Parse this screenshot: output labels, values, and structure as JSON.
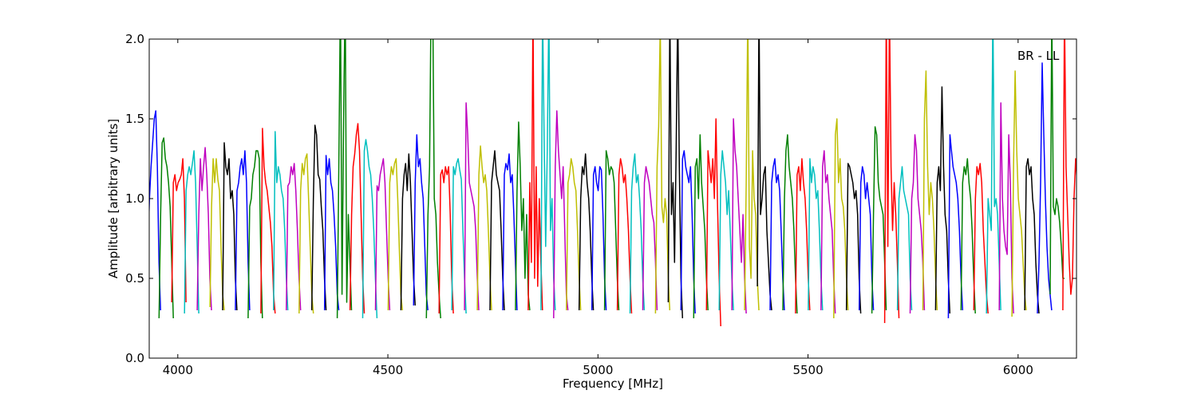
{
  "chart_data": {
    "type": "line",
    "title": "",
    "annotation": "BR - LL",
    "xlabel": "Frequency [MHz]",
    "ylabel": "Amplitude [arbitrary units]",
    "xlim": [
      3932,
      6139
    ],
    "ylim": [
      0,
      2
    ],
    "xticks": [
      4000,
      4500,
      5000,
      5500,
      6000
    ],
    "xtick_labels": [
      "4000",
      "4500",
      "5000",
      "5500",
      "6000"
    ],
    "yticks": [
      0,
      0.5,
      1,
      1.5,
      2
    ],
    "ytick_labels": [
      "0.0",
      "0.5",
      "1.0",
      "1.5",
      "2.0"
    ],
    "grid": false,
    "color_cycle": [
      "#0000ff",
      "#008000",
      "#ff0000",
      "#00bfbf",
      "#bf00bf",
      "#bfbf00",
      "#000000"
    ],
    "segment_start_mhz": 3925,
    "segment_step_mhz": 30.3,
    "segment_width_mhz": 34,
    "segments": [
      [
        0.3,
        0.7,
        1.0,
        1.2,
        1.35,
        1.5,
        1.55,
        1.2,
        0.6,
        0.3
      ],
      [
        0.25,
        0.9,
        1.35,
        1.38,
        1.25,
        1.2,
        1.1,
        0.95,
        0.6,
        0.25
      ],
      [
        0.35,
        1.1,
        1.15,
        1.05,
        1.1,
        1.12,
        1.15,
        1.25,
        1.0,
        0.35
      ],
      [
        0.28,
        1.05,
        1.15,
        1.2,
        1.15,
        1.22,
        1.3,
        1.1,
        0.7,
        0.28
      ],
      [
        0.3,
        0.9,
        1.25,
        1.05,
        1.2,
        1.32,
        1.15,
        0.9,
        0.5,
        0.3
      ],
      [
        0.32,
        0.95,
        1.25,
        1.1,
        1.25,
        1.12,
        1.05,
        0.7,
        0.4,
        0.3
      ],
      [
        0.3,
        1.35,
        1.2,
        1.15,
        1.25,
        1.0,
        1.05,
        0.9,
        0.5,
        0.3
      ],
      [
        0.3,
        1.05,
        1.1,
        1.2,
        1.25,
        1.15,
        1.3,
        1.1,
        0.6,
        0.3
      ],
      [
        0.25,
        0.95,
        1.0,
        1.15,
        1.2,
        1.3,
        1.3,
        1.25,
        0.6,
        0.25
      ],
      [
        0.28,
        1.44,
        1.2,
        1.1,
        1.05,
        0.95,
        0.85,
        0.7,
        0.4,
        0.28
      ],
      [
        0.3,
        1.42,
        1.1,
        1.2,
        1.15,
        1.05,
        1.0,
        0.8,
        0.5,
        0.3
      ],
      [
        0.3,
        1.08,
        1.1,
        1.2,
        1.15,
        1.22,
        1.05,
        0.8,
        0.5,
        0.3
      ],
      [
        0.28,
        1.05,
        1.22,
        1.15,
        1.25,
        1.28,
        1.0,
        0.7,
        0.4,
        0.28
      ],
      [
        0.3,
        1.0,
        1.46,
        1.4,
        1.15,
        1.12,
        0.95,
        0.8,
        0.5,
        0.3
      ],
      [
        0.3,
        1.27,
        1.15,
        1.25,
        1.1,
        1.05,
        0.9,
        0.7,
        0.4,
        0.3
      ],
      [
        0.25,
        1.2,
        2.3,
        0.4,
        1.5,
        2.3,
        0.35,
        0.9,
        0.6,
        0.3
      ],
      [
        0.3,
        0.9,
        1.2,
        1.28,
        1.4,
        1.47,
        1.3,
        0.9,
        0.5,
        0.28
      ],
      [
        0.25,
        1.3,
        1.37,
        1.3,
        1.2,
        1.15,
        1.0,
        0.8,
        0.5,
        0.25
      ],
      [
        0.3,
        1.08,
        1.05,
        1.15,
        1.2,
        1.25,
        1.1,
        0.8,
        0.5,
        0.3
      ],
      [
        0.3,
        1.1,
        1.2,
        1.15,
        1.22,
        1.25,
        1.0,
        0.7,
        0.4,
        0.3
      ],
      [
        0.3,
        1.0,
        1.15,
        1.22,
        1.05,
        1.28,
        1.1,
        0.8,
        0.5,
        0.33
      ],
      [
        0.33,
        1.1,
        1.4,
        1.2,
        1.25,
        1.1,
        1.0,
        0.7,
        0.4,
        0.3
      ],
      [
        0.25,
        0.9,
        1.2,
        2.3,
        2.3,
        1.0,
        0.9,
        0.6,
        0.4,
        0.25
      ],
      [
        0.28,
        1.15,
        1.18,
        1.1,
        1.2,
        1.15,
        1.2,
        0.9,
        0.5,
        0.28
      ],
      [
        0.3,
        1.2,
        1.15,
        1.22,
        1.25,
        1.18,
        1.12,
        0.8,
        0.5,
        0.28
      ],
      [
        0.3,
        1.6,
        1.4,
        1.1,
        1.05,
        1.0,
        0.95,
        0.8,
        0.5,
        0.3
      ],
      [
        0.3,
        1.15,
        1.33,
        1.2,
        1.1,
        1.15,
        1.05,
        0.8,
        0.5,
        0.3
      ],
      [
        0.3,
        1.1,
        1.2,
        1.3,
        1.15,
        1.1,
        1.05,
        0.8,
        0.5,
        0.3
      ],
      [
        0.3,
        1.15,
        1.22,
        1.18,
        1.28,
        1.1,
        1.15,
        0.9,
        0.6,
        0.3
      ],
      [
        0.3,
        1.05,
        1.48,
        1.2,
        0.8,
        1.0,
        0.5,
        0.9,
        0.4,
        0.3
      ],
      [
        0.3,
        1.1,
        0.6,
        2.2,
        0.5,
        1.2,
        0.45,
        1.0,
        0.6,
        0.3
      ],
      [
        0.3,
        2.2,
        1.4,
        0.7,
        1.3,
        2.2,
        0.8,
        1.0,
        0.5,
        0.3
      ],
      [
        0.25,
        1.2,
        1.55,
        1.3,
        1.15,
        1.0,
        1.2,
        0.8,
        0.4,
        0.3
      ],
      [
        0.3,
        1.1,
        1.15,
        1.25,
        1.2,
        1.1,
        1.05,
        0.8,
        0.5,
        0.3
      ],
      [
        0.3,
        1.0,
        1.2,
        1.15,
        1.28,
        1.1,
        1.0,
        0.8,
        0.5,
        0.3
      ],
      [
        0.3,
        1.15,
        1.2,
        1.1,
        1.05,
        1.2,
        1.18,
        0.9,
        0.5,
        0.3
      ],
      [
        0.3,
        1.3,
        1.25,
        1.15,
        1.2,
        1.18,
        1.1,
        0.8,
        0.5,
        0.3
      ],
      [
        0.3,
        1.15,
        1.25,
        1.2,
        1.1,
        1.15,
        1.0,
        0.8,
        0.5,
        0.28
      ],
      [
        0.28,
        1.05,
        1.2,
        1.28,
        1.1,
        1.15,
        1.0,
        0.8,
        0.5,
        0.3
      ],
      [
        0.3,
        1.1,
        1.2,
        1.15,
        1.1,
        1.0,
        0.9,
        0.85,
        0.6,
        0.3
      ],
      [
        0.28,
        1.2,
        1.45,
        2.1,
        0.95,
        0.85,
        1.0,
        0.9,
        0.5,
        0.3
      ],
      [
        0.35,
        2.2,
        0.9,
        1.1,
        0.6,
        1.3,
        2.2,
        1.2,
        0.5,
        0.25
      ],
      [
        0.3,
        1.25,
        1.3,
        1.2,
        1.15,
        1.1,
        1.2,
        0.9,
        0.5,
        0.28
      ],
      [
        0.25,
        1.2,
        1.25,
        1.0,
        1.4,
        1.1,
        0.95,
        0.8,
        0.5,
        0.3
      ],
      [
        0.3,
        1.3,
        1.2,
        1.1,
        1.25,
        1.0,
        1.5,
        0.95,
        0.5,
        0.2
      ],
      [
        0.3,
        1.15,
        1.3,
        1.2,
        1.1,
        0.9,
        1.05,
        0.8,
        0.5,
        0.3
      ],
      [
        0.3,
        1.5,
        1.3,
        1.2,
        1.0,
        0.8,
        0.6,
        0.9,
        0.5,
        0.28
      ],
      [
        0.3,
        1.1,
        2.2,
        0.7,
        0.5,
        1.3,
        1.0,
        0.9,
        0.5,
        0.3
      ],
      [
        0.45,
        2.2,
        0.9,
        1.0,
        1.15,
        1.2,
        0.8,
        0.6,
        0.4,
        0.3
      ],
      [
        0.3,
        1.1,
        1.2,
        1.25,
        1.1,
        1.15,
        1.05,
        0.8,
        0.5,
        0.3
      ],
      [
        0.3,
        1.0,
        1.3,
        1.4,
        1.2,
        1.1,
        1.0,
        0.8,
        0.5,
        0.28
      ],
      [
        0.28,
        1.15,
        1.2,
        1.05,
        1.25,
        1.1,
        1.0,
        0.8,
        0.5,
        0.3
      ],
      [
        0.3,
        1.25,
        1.1,
        1.2,
        1.15,
        1.0,
        1.05,
        0.8,
        0.5,
        0.3
      ],
      [
        0.3,
        1.2,
        1.3,
        1.1,
        1.15,
        1.0,
        0.9,
        0.8,
        0.5,
        0.28
      ],
      [
        0.25,
        1.4,
        1.5,
        1.1,
        1.25,
        1.0,
        0.95,
        0.8,
        0.5,
        0.3
      ],
      [
        0.3,
        1.22,
        1.2,
        1.15,
        1.1,
        1.0,
        1.05,
        0.9,
        0.5,
        0.28
      ],
      [
        0.3,
        1.1,
        1.2,
        1.15,
        1.0,
        1.1,
        1.0,
        0.9,
        0.5,
        0.3
      ],
      [
        0.28,
        0.9,
        1.45,
        1.4,
        1.1,
        1.0,
        0.95,
        0.9,
        0.6,
        0.3
      ],
      [
        0.22,
        2.2,
        0.7,
        2.2,
        1.2,
        0.8,
        1.1,
        0.9,
        0.6,
        0.25
      ],
      [
        0.3,
        1.0,
        1.1,
        1.2,
        1.05,
        1.0,
        0.95,
        0.9,
        0.5,
        0.3
      ],
      [
        0.28,
        1.0,
        1.1,
        1.4,
        1.3,
        1.0,
        0.9,
        0.8,
        0.6,
        0.3
      ],
      [
        0.3,
        1.5,
        1.8,
        1.2,
        0.9,
        1.1,
        1.0,
        0.8,
        0.5,
        0.3
      ],
      [
        0.3,
        1.1,
        1.2,
        1.05,
        1.7,
        1.2,
        0.9,
        0.8,
        0.5,
        0.28
      ],
      [
        0.25,
        1.4,
        1.3,
        1.2,
        1.15,
        1.1,
        1.0,
        0.8,
        0.5,
        0.3
      ],
      [
        0.3,
        1.1,
        1.2,
        1.15,
        1.25,
        1.1,
        1.0,
        0.8,
        0.5,
        0.28
      ],
      [
        0.3,
        1.0,
        1.2,
        1.15,
        1.22,
        1.1,
        0.8,
        0.6,
        0.4,
        0.28
      ],
      [
        0.28,
        1.0,
        0.9,
        0.8,
        2.2,
        0.95,
        1.0,
        0.9,
        0.6,
        0.3
      ],
      [
        0.3,
        1.6,
        1.0,
        0.8,
        0.7,
        0.65,
        1.4,
        1.1,
        0.5,
        0.28
      ],
      [
        0.26,
        1.2,
        1.8,
        1.3,
        1.0,
        0.9,
        0.8,
        0.6,
        0.4,
        0.3
      ],
      [
        0.3,
        1.2,
        1.25,
        1.15,
        1.2,
        1.0,
        0.9,
        0.6,
        0.4,
        0.28
      ],
      [
        0.28,
        0.6,
        1.1,
        1.85,
        1.4,
        1.0,
        0.7,
        0.5,
        0.4,
        0.3
      ],
      [
        0.4,
        2.2,
        0.95,
        0.9,
        1.0,
        0.95,
        0.85,
        0.7,
        0.5,
        0.5
      ],
      [
        0.3,
        2.2,
        1.2,
        0.9,
        0.6,
        0.4,
        0.5,
        1.0,
        1.25,
        1.1
      ]
    ]
  }
}
